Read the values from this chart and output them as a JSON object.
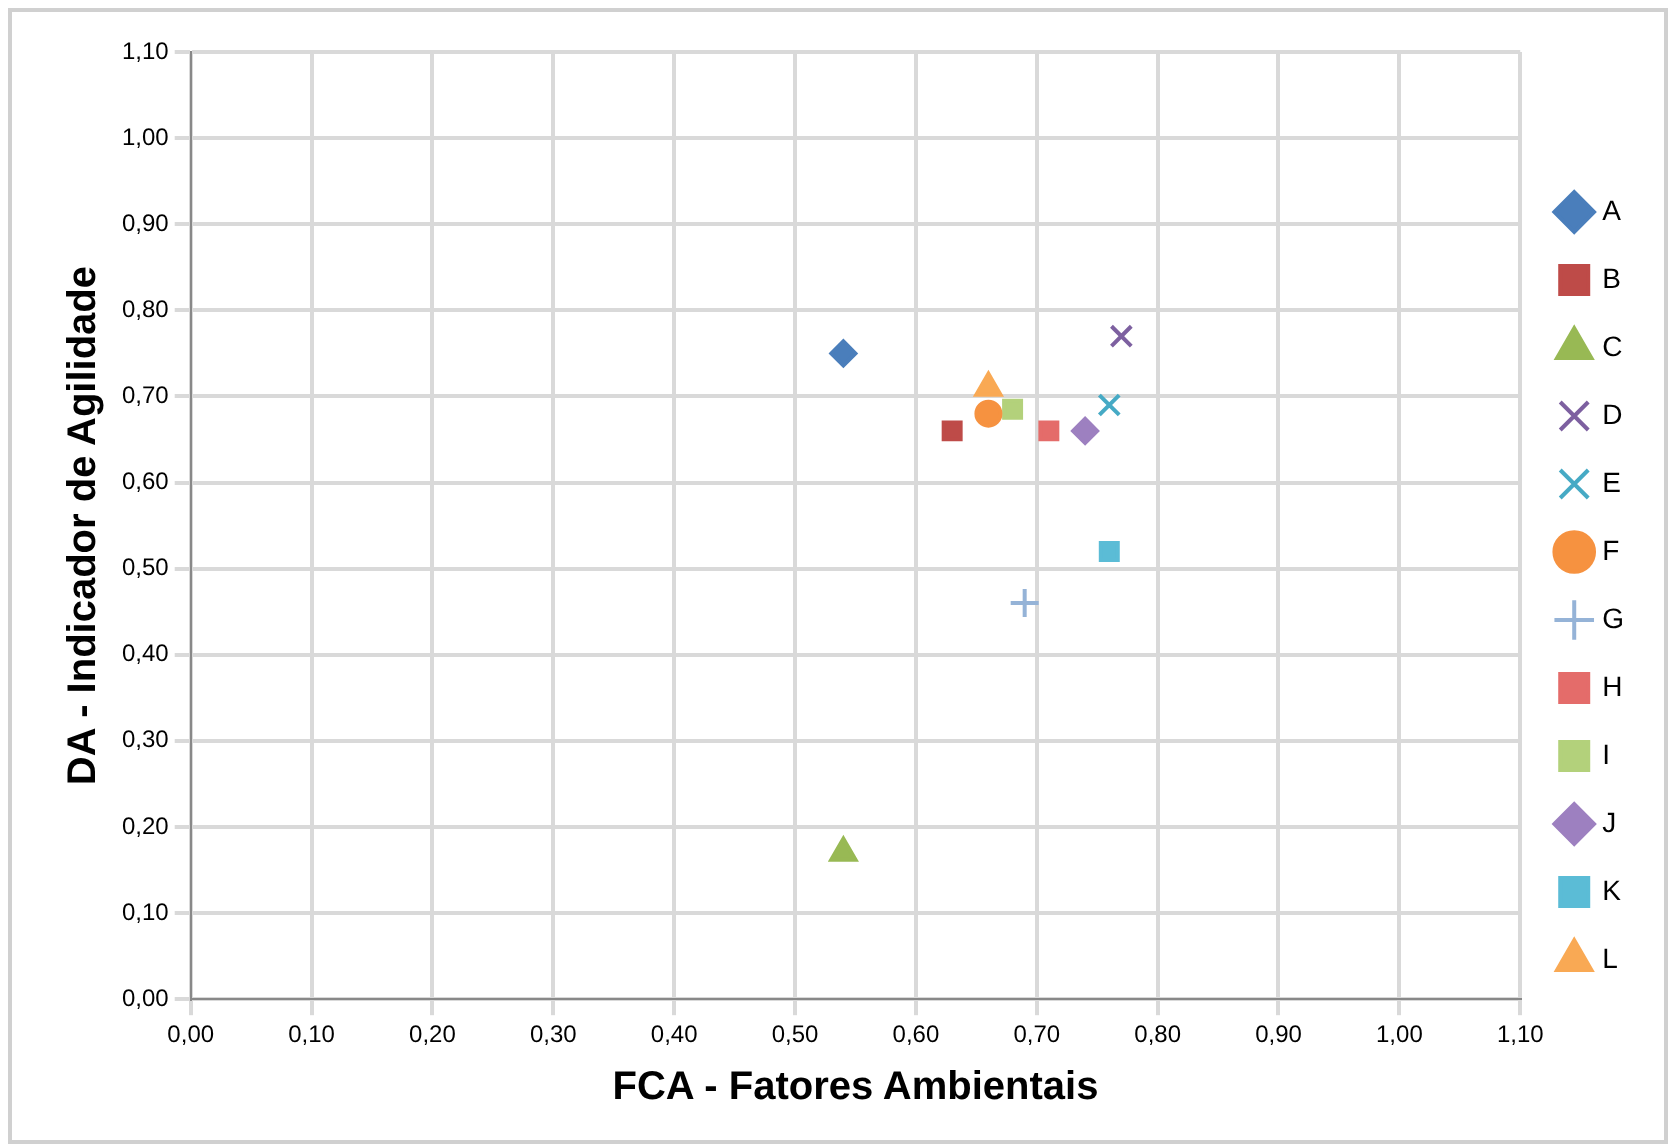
{
  "chart_data": {
    "type": "scatter",
    "xlabel": "FCA - Fatores Ambientais",
    "ylabel": "DA - Indicador de Agilidade",
    "xlim": [
      0,
      1.1
    ],
    "ylim": [
      0,
      1.1
    ],
    "xticks": [
      {
        "value": 0,
        "label": "0,00"
      },
      {
        "value": 0.1,
        "label": "0,10"
      },
      {
        "value": 0.2,
        "label": "0,20"
      },
      {
        "value": 0.3,
        "label": "0,30"
      },
      {
        "value": 0.4,
        "label": "0,40"
      },
      {
        "value": 0.5,
        "label": "0,50"
      },
      {
        "value": 0.6,
        "label": "0,60"
      },
      {
        "value": 0.7,
        "label": "0,70"
      },
      {
        "value": 0.8,
        "label": "0,80"
      },
      {
        "value": 0.9,
        "label": "0,90"
      },
      {
        "value": 1,
        "label": "1,00"
      },
      {
        "value": 1.1,
        "label": "1,10"
      }
    ],
    "yticks": [
      {
        "value": 0,
        "label": "0,00"
      },
      {
        "value": 0.1,
        "label": "0,10"
      },
      {
        "value": 0.2,
        "label": "0,20"
      },
      {
        "value": 0.3,
        "label": "0,30"
      },
      {
        "value": 0.4,
        "label": "0,40"
      },
      {
        "value": 0.5,
        "label": "0,50"
      },
      {
        "value": 0.6,
        "label": "0,60"
      },
      {
        "value": 0.7,
        "label": "0,70"
      },
      {
        "value": 0.8,
        "label": "0,80"
      },
      {
        "value": 0.9,
        "label": "0,90"
      },
      {
        "value": 1,
        "label": "1,00"
      },
      {
        "value": 1.1,
        "label": "1,10"
      }
    ],
    "grid": true,
    "legend": "right",
    "series": [
      {
        "name": "A",
        "color": "#4a7ebb",
        "marker": "diamond",
        "x": [
          0.54
        ],
        "values": [
          0.75
        ]
      },
      {
        "name": "B",
        "color": "#be4b48",
        "marker": "square",
        "x": [
          0.63
        ],
        "values": [
          0.66
        ]
      },
      {
        "name": "C",
        "color": "#98b954",
        "marker": "triangle",
        "x": [
          0.54
        ],
        "values": [
          0.17
        ]
      },
      {
        "name": "D",
        "color": "#7d60a0",
        "marker": "cross",
        "x": [
          0.77
        ],
        "values": [
          0.77
        ]
      },
      {
        "name": "E",
        "color": "#46aac5",
        "marker": "cross",
        "x": [
          0.76
        ],
        "values": [
          0.69
        ]
      },
      {
        "name": "F",
        "color": "#f69240",
        "marker": "circle",
        "x": [
          0.66
        ],
        "values": [
          0.68
        ]
      },
      {
        "name": "G",
        "color": "#95b3d7",
        "marker": "plus",
        "x": [
          0.69
        ],
        "values": [
          0.46
        ]
      },
      {
        "name": "H",
        "color": "#e46c6a",
        "marker": "square",
        "x": [
          0.71
        ],
        "values": [
          0.66
        ]
      },
      {
        "name": "I",
        "color": "#b3d17b",
        "marker": "square",
        "x": [
          0.68
        ],
        "values": [
          0.685
        ]
      },
      {
        "name": "J",
        "color": "#9d80c0",
        "marker": "diamond",
        "x": [
          0.74
        ],
        "values": [
          0.66
        ]
      },
      {
        "name": "K",
        "color": "#5bbcd6",
        "marker": "square",
        "x": [
          0.76
        ],
        "values": [
          0.52
        ]
      },
      {
        "name": "L",
        "color": "#f9a954",
        "marker": "triangle",
        "x": [
          0.66
        ],
        "values": [
          0.71
        ]
      }
    ]
  }
}
